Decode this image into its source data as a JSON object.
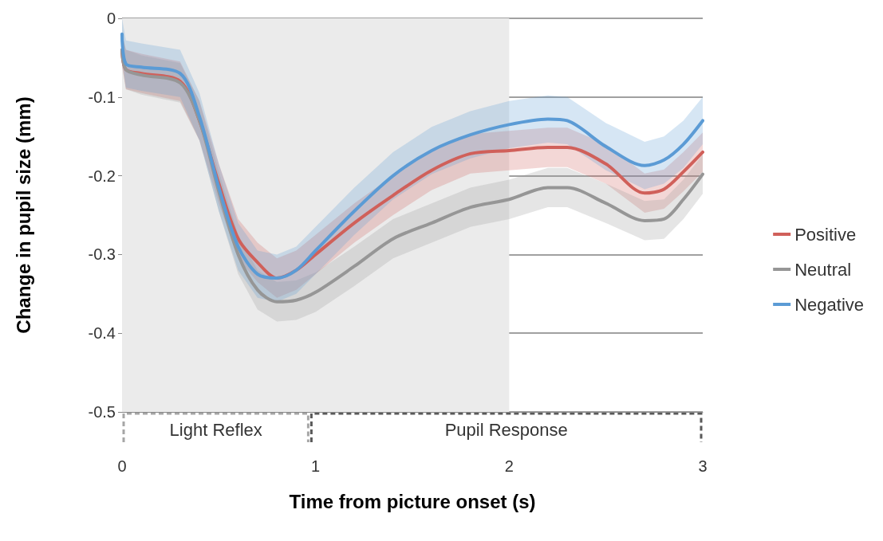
{
  "chart_data": {
    "type": "line",
    "xlabel": "Time from picture onset (s)",
    "ylabel": "Change in pupil size (mm)",
    "xlim": [
      0,
      3
    ],
    "xticks": [
      0,
      1,
      2,
      3
    ],
    "ylim": [
      -0.5,
      0
    ],
    "yticks": [
      -0.5,
      -0.4,
      -0.3,
      -0.2,
      -0.1,
      0
    ],
    "grid": "y",
    "legend": "right",
    "marker": "none",
    "line_style": "solid",
    "x": [
      0,
      0.02,
      0.1,
      0.3,
      0.4,
      0.5,
      0.6,
      0.7,
      0.8,
      0.9,
      1.0,
      1.2,
      1.4,
      1.6,
      1.8,
      2.0,
      2.2,
      2.3,
      2.5,
      2.7,
      2.8,
      2.9,
      3.0
    ],
    "series": [
      {
        "name": "Positive",
        "color": "#d0605a",
        "values": [
          -0.04,
          -0.065,
          -0.07,
          -0.08,
          -0.13,
          -0.21,
          -0.28,
          -0.31,
          -0.33,
          -0.32,
          -0.3,
          -0.26,
          -0.225,
          -0.193,
          -0.172,
          -0.168,
          -0.164,
          -0.164,
          -0.185,
          -0.222,
          -0.217,
          -0.195,
          -0.17
        ],
        "lower": [
          -0.06,
          -0.09,
          -0.095,
          -0.105,
          -0.155,
          -0.235,
          -0.305,
          -0.335,
          -0.355,
          -0.345,
          -0.325,
          -0.285,
          -0.25,
          -0.218,
          -0.197,
          -0.193,
          -0.189,
          -0.189,
          -0.21,
          -0.247,
          -0.242,
          -0.22,
          -0.195
        ],
        "upper": [
          -0.02,
          -0.04,
          -0.045,
          -0.055,
          -0.105,
          -0.185,
          -0.255,
          -0.285,
          -0.305,
          -0.295,
          -0.275,
          -0.235,
          -0.2,
          -0.168,
          -0.147,
          -0.143,
          -0.139,
          -0.139,
          -0.16,
          -0.197,
          -0.192,
          -0.17,
          -0.145
        ]
      },
      {
        "name": "Neutral",
        "color": "#969696",
        "values": [
          -0.04,
          -0.065,
          -0.072,
          -0.082,
          -0.13,
          -0.22,
          -0.3,
          -0.345,
          -0.36,
          -0.358,
          -0.348,
          -0.315,
          -0.28,
          -0.26,
          -0.24,
          -0.23,
          -0.215,
          -0.215,
          -0.235,
          -0.257,
          -0.255,
          -0.23,
          -0.198
        ],
        "lower": [
          -0.06,
          -0.09,
          -0.097,
          -0.107,
          -0.155,
          -0.245,
          -0.325,
          -0.37,
          -0.385,
          -0.383,
          -0.373,
          -0.34,
          -0.305,
          -0.285,
          -0.265,
          -0.255,
          -0.24,
          -0.24,
          -0.26,
          -0.282,
          -0.28,
          -0.255,
          -0.223
        ],
        "upper": [
          -0.02,
          -0.04,
          -0.047,
          -0.057,
          -0.105,
          -0.195,
          -0.275,
          -0.32,
          -0.335,
          -0.333,
          -0.323,
          -0.29,
          -0.255,
          -0.235,
          -0.215,
          -0.205,
          -0.19,
          -0.19,
          -0.21,
          -0.232,
          -0.23,
          -0.205,
          -0.173
        ]
      },
      {
        "name": "Negative",
        "color": "#5b9bd5",
        "values": [
          -0.02,
          -0.058,
          -0.062,
          -0.07,
          -0.125,
          -0.215,
          -0.29,
          -0.325,
          -0.33,
          -0.32,
          -0.295,
          -0.245,
          -0.2,
          -0.168,
          -0.148,
          -0.135,
          -0.128,
          -0.13,
          -0.163,
          -0.187,
          -0.18,
          -0.16,
          -0.13
        ],
        "lower": [
          -0.05,
          -0.088,
          -0.092,
          -0.1,
          -0.155,
          -0.245,
          -0.32,
          -0.355,
          -0.36,
          -0.35,
          -0.325,
          -0.275,
          -0.23,
          -0.198,
          -0.178,
          -0.165,
          -0.158,
          -0.16,
          -0.193,
          -0.217,
          -0.21,
          -0.19,
          -0.16
        ],
        "upper": [
          0,
          -0.028,
          -0.032,
          -0.04,
          -0.095,
          -0.185,
          -0.26,
          -0.295,
          -0.3,
          -0.29,
          -0.265,
          -0.215,
          -0.17,
          -0.138,
          -0.118,
          -0.105,
          -0.098,
          -0.1,
          -0.133,
          -0.157,
          -0.15,
          -0.13,
          -0.1
        ]
      }
    ],
    "bands": [
      {
        "axis": "x",
        "from": 0,
        "to": 2,
        "color": "#ebebeb"
      }
    ],
    "annotations": [
      {
        "text": "Light Reflex",
        "x": 0.485,
        "y": -0.5
      },
      {
        "text": "Pupil Response",
        "x": 1.985,
        "y": -0.5
      }
    ]
  }
}
